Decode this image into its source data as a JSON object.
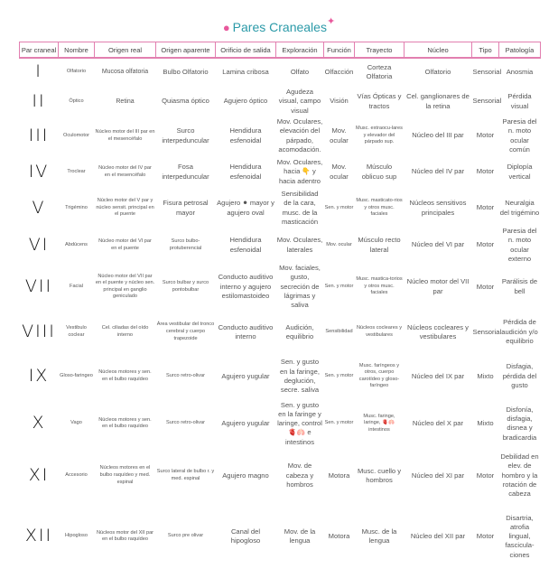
{
  "title": "Pares Craneales",
  "icons": {
    "title_icon": "brain-icon",
    "title_decoration": "sparkle-icon"
  },
  "colors": {
    "accent_pink": "#e27fb0",
    "title_teal": "#2b9aa8"
  },
  "headers": [
    "Par craneal",
    "Nombre",
    "Origen real",
    "Origen aparente",
    "Orificio de salida",
    "Exploración",
    "Función",
    "Trayecto",
    "Núcleo",
    "Tipo",
    "Patología"
  ],
  "rows": [
    [
      "I",
      "Olfatorio",
      "Mucosa olfatoria",
      "Bulbo Olfatorio",
      "Lamina cribosa",
      "Olfato",
      "Olfacción",
      "Corteza Olfatoria",
      "Olfatorio",
      "Sensorial",
      "Anosmia"
    ],
    [
      "II",
      "Óptico",
      "Retina",
      "Quiasma óptico",
      "Agujero óptico",
      "Agudeza visual, campo visual",
      "Visión",
      "Vías Ópticas y tractos",
      "Cel. ganglionares de la retina",
      "Sensorial",
      "Pérdida visual"
    ],
    [
      "III",
      "Oculomotor",
      "Núcleo motor del III par en el mesencéfalo",
      "Surco interpeduncular",
      "Hendidura esfenoidal",
      "Mov. Oculares, elevación del párpado, acomodación.",
      "Mov. ocular",
      "Musc. extraocu-lares y elevador del párpado sup.",
      "Núcleo del III par",
      "Motor",
      "Paresia del n. moto ocular común"
    ],
    [
      "IV",
      "Troclear",
      "Núcleo motor del IV par en el mesencéfalo",
      "Fosa interpeduncular",
      "Hendidura esfenoidal",
      "Mov. Oculares, hacia 👇 y hacia adentro",
      "Mov. ocular",
      "Músculo oblicuo sup",
      "Núcleo del IV par",
      "Motor",
      "Diplopía vertical"
    ],
    [
      "V",
      "Trigémino",
      "Núcleo motor del V par y núcleo sensit. principal en el puente",
      "Fisura petrosal mayor",
      "Agujero ⚫ mayor y agujero oval",
      "Sensibilidad de la cara, musc. de la masticación",
      "Sen. y motor",
      "Musc. masticato-rios y otros musc. faciales",
      "Núcleos sensitivos principales",
      "Motor",
      "Neuralgia del trigémino"
    ],
    [
      "VI",
      "Abdúcens",
      "Núcleo motor del VI par en el puente",
      "Surco bulbo-protuberencial",
      "Hendidura esfenoidal",
      "Mov. Oculares, laterales",
      "Mov. ocular",
      "Músculo recto lateral",
      "Núcleo del VI par",
      "Motor",
      "Paresia del n. moto ocular externo"
    ],
    [
      "VII",
      "Facial",
      "Núcleo motor del VII par en el puente y núcleo sen. principal en ganglio geniculado",
      "Surco bulbar y surco pontobulbar",
      "Conducto auditivo interno y agujero estilomastoideo",
      "Mov. faciales, gusto, secreción de lágrimas y saliva",
      "Sen. y motor",
      "Musc. mastica-torios y otros musc. faciales",
      "Núcleo motor del VII par",
      "Motor",
      "Parálisis de bell"
    ],
    [
      "VIII",
      "Vestibulo coclear",
      "Cel. ciliadas del oído interno",
      "Área vestibular del tronco cerebral y cuerpo trapezoide",
      "Conducto auditivo interno",
      "Audición, equilibrio",
      "Sensibilidad",
      "Núcleos cocleares y vestibulares",
      "Núcleos cocleares y vestibulares",
      "Sensorial",
      "Pérdida de audición y/o equilibrio"
    ],
    [
      "IX",
      "Gloso-faringeo",
      "Núcleos motores y sen. en el bulbo raquídeo",
      "Surco retro-olivar",
      "Agujero yugular",
      "Sen. y gusto en la faringe, deglución, secre. saliva",
      "Sen. y motor",
      "Musc. faríngeos y otros, cuerpo carotídeo y gloso-faríngeo",
      "Núcleo del IX par",
      "Mixto",
      "Disfagia, pérdida del gusto"
    ],
    [
      "X",
      "Vago",
      "Núcleos motores y sen. en el bulbo raquídeo",
      "Surco retro-olivar",
      "Agujero yugular",
      "Sen. y gusto en la faringe y laringe, control 🫀🫁 e intestinos",
      "Sen. y motor",
      "Musc. faringe, laringe, 🫀🫁 intestinos",
      "Núcleo del X par",
      "Mixto",
      "Disfonía, disfagia, disnea y bradicardia"
    ],
    [
      "XI",
      "Accesorio",
      "Núcleos motores en el bulbo raquídeo y med. espinal",
      "Surco lateral de bulbo r. y med. espinal",
      "Agujero magno",
      "Mov. de cabeza y hombros",
      "Motora",
      "Musc. cuello y hombros",
      "Núcleo del XI par",
      "Motor",
      "Debilidad en elev. de hombro y la rotación de cabeza"
    ],
    [
      "XII",
      "Hipogloso",
      "Núcleos motor del XII par en el bulbo raquídeo",
      "Surco pre olivar",
      "Canal del hipogloso",
      "Mov. de la lengua",
      "Motora",
      "Musc. de la lengua",
      "Núcleo del XII par",
      "Motor",
      "Disartria, atrofia lingual, fascicula-ciones"
    ]
  ]
}
